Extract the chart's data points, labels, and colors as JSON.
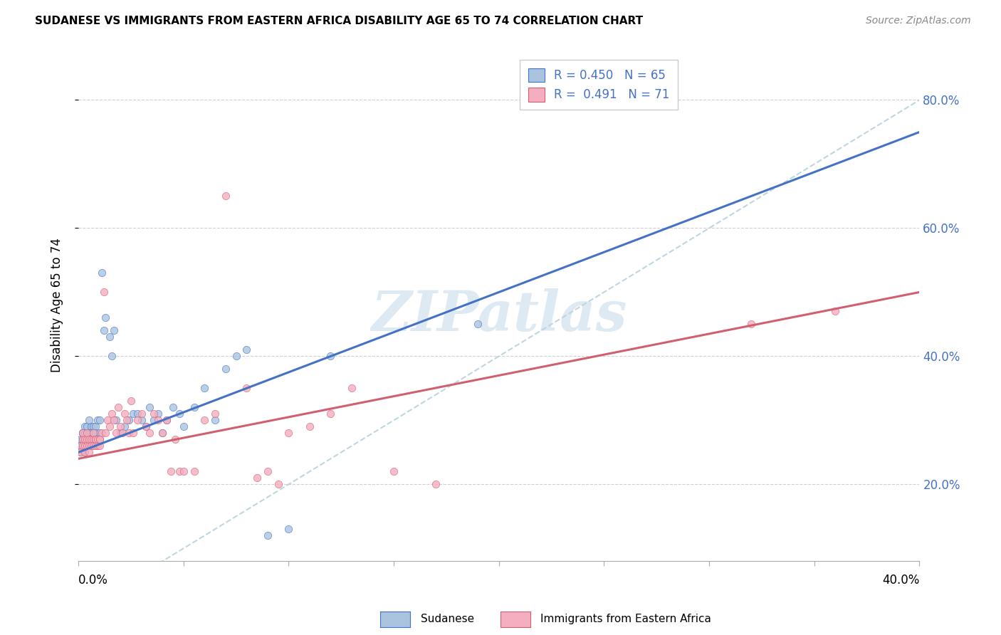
{
  "title": "SUDANESE VS IMMIGRANTS FROM EASTERN AFRICA DISABILITY AGE 65 TO 74 CORRELATION CHART",
  "source": "Source: ZipAtlas.com",
  "ylabel": "Disability Age 65 to 74",
  "legend_label1": "Sudanese",
  "legend_label2": "Immigrants from Eastern Africa",
  "R1": 0.45,
  "N1": 65,
  "R2": 0.491,
  "N2": 71,
  "color_blue": "#aac4e0",
  "color_blue_dark": "#4472c4",
  "color_pink": "#f4aec0",
  "color_pink_dark": "#d06070",
  "color_line_blue": "#4472c4",
  "color_line_pink": "#d06070",
  "color_dashed": "#b0ccd8",
  "watermark_text": "ZIPatlas",
  "xlim": [
    0.0,
    0.4
  ],
  "ylim": [
    0.08,
    0.88
  ],
  "y_ticks": [
    0.2,
    0.4,
    0.6,
    0.8
  ],
  "blue_points_x": [
    0.001,
    0.001,
    0.001,
    0.002,
    0.002,
    0.002,
    0.002,
    0.003,
    0.003,
    0.003,
    0.003,
    0.003,
    0.004,
    0.004,
    0.004,
    0.004,
    0.005,
    0.005,
    0.005,
    0.005,
    0.005,
    0.006,
    0.006,
    0.006,
    0.007,
    0.007,
    0.007,
    0.008,
    0.008,
    0.009,
    0.009,
    0.01,
    0.01,
    0.011,
    0.012,
    0.013,
    0.015,
    0.016,
    0.017,
    0.018,
    0.02,
    0.022,
    0.024,
    0.026,
    0.028,
    0.03,
    0.032,
    0.034,
    0.036,
    0.038,
    0.04,
    0.042,
    0.045,
    0.048,
    0.05,
    0.055,
    0.06,
    0.065,
    0.07,
    0.075,
    0.08,
    0.09,
    0.1,
    0.12,
    0.19
  ],
  "blue_points_y": [
    0.27,
    0.26,
    0.25,
    0.28,
    0.27,
    0.26,
    0.28,
    0.29,
    0.27,
    0.26,
    0.25,
    0.28,
    0.27,
    0.28,
    0.26,
    0.29,
    0.27,
    0.28,
    0.26,
    0.3,
    0.27,
    0.29,
    0.27,
    0.28,
    0.27,
    0.29,
    0.28,
    0.29,
    0.28,
    0.27,
    0.3,
    0.28,
    0.3,
    0.53,
    0.44,
    0.46,
    0.43,
    0.4,
    0.44,
    0.3,
    0.28,
    0.29,
    0.3,
    0.31,
    0.31,
    0.3,
    0.29,
    0.32,
    0.3,
    0.31,
    0.28,
    0.3,
    0.32,
    0.31,
    0.29,
    0.32,
    0.35,
    0.3,
    0.38,
    0.4,
    0.41,
    0.12,
    0.13,
    0.4,
    0.45
  ],
  "pink_points_x": [
    0.001,
    0.001,
    0.002,
    0.002,
    0.002,
    0.003,
    0.003,
    0.003,
    0.004,
    0.004,
    0.004,
    0.005,
    0.005,
    0.005,
    0.006,
    0.006,
    0.007,
    0.007,
    0.007,
    0.008,
    0.008,
    0.008,
    0.009,
    0.009,
    0.01,
    0.01,
    0.01,
    0.011,
    0.012,
    0.013,
    0.014,
    0.015,
    0.016,
    0.017,
    0.018,
    0.019,
    0.02,
    0.021,
    0.022,
    0.023,
    0.024,
    0.025,
    0.026,
    0.028,
    0.03,
    0.032,
    0.034,
    0.036,
    0.038,
    0.04,
    0.042,
    0.044,
    0.046,
    0.048,
    0.05,
    0.055,
    0.06,
    0.065,
    0.07,
    0.08,
    0.085,
    0.09,
    0.095,
    0.1,
    0.11,
    0.12,
    0.13,
    0.15,
    0.17,
    0.32,
    0.36
  ],
  "pink_points_y": [
    0.26,
    0.25,
    0.27,
    0.26,
    0.28,
    0.26,
    0.27,
    0.25,
    0.27,
    0.26,
    0.28,
    0.26,
    0.27,
    0.25,
    0.27,
    0.26,
    0.27,
    0.26,
    0.28,
    0.27,
    0.26,
    0.27,
    0.26,
    0.27,
    0.26,
    0.27,
    0.27,
    0.28,
    0.5,
    0.28,
    0.3,
    0.29,
    0.31,
    0.3,
    0.28,
    0.32,
    0.29,
    0.28,
    0.31,
    0.3,
    0.28,
    0.33,
    0.28,
    0.3,
    0.31,
    0.29,
    0.28,
    0.31,
    0.3,
    0.28,
    0.3,
    0.22,
    0.27,
    0.22,
    0.22,
    0.22,
    0.3,
    0.31,
    0.65,
    0.35,
    0.21,
    0.22,
    0.2,
    0.28,
    0.29,
    0.31,
    0.35,
    0.22,
    0.2,
    0.45,
    0.47
  ]
}
